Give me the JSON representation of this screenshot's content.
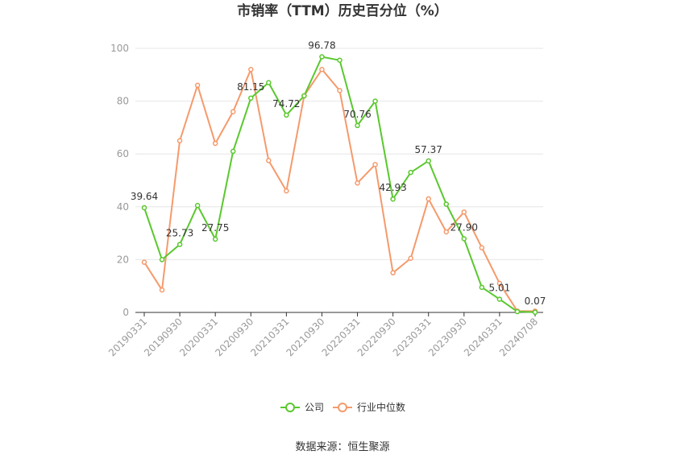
{
  "chart_data": {
    "type": "line",
    "title": "市销率（TTM）历史百分位（%）",
    "xlabel": "",
    "ylabel": "",
    "ylim": [
      0,
      100
    ],
    "yticks": [
      0,
      20,
      40,
      60,
      80,
      100
    ],
    "x": [
      "20190331",
      "20190630",
      "20190930",
      "20191231",
      "20200331",
      "20200630",
      "20200930",
      "20201231",
      "20210331",
      "20210630",
      "20210930",
      "20211231",
      "20220331",
      "20220630",
      "20220930",
      "20221231",
      "20230331",
      "20230630",
      "20230930",
      "20231231",
      "20240331",
      "20240630",
      "20240708"
    ],
    "xtick_labels": [
      "20190331",
      "20190930",
      "20200331",
      "20200930",
      "20210331",
      "20210930",
      "20220331",
      "20220930",
      "20230331",
      "20230930",
      "20240331",
      "20240708"
    ],
    "series": [
      {
        "name": "公司",
        "color": "#5ac82e",
        "values": [
          39.64,
          20.0,
          25.73,
          40.5,
          27.75,
          61.0,
          81.15,
          87.0,
          74.72,
          82.0,
          96.78,
          95.5,
          70.76,
          80.0,
          42.93,
          53.0,
          57.37,
          41.0,
          27.9,
          9.5,
          5.01,
          0.3,
          0.07
        ],
        "labels": [
          "39.64",
          "",
          "25.73",
          "",
          "27.75",
          "",
          "81.15",
          "",
          "74.72",
          "",
          "96.78",
          "",
          "70.76",
          "",
          "42.93",
          "",
          "57.37",
          "",
          "27.90",
          "",
          "5.01",
          "",
          "0.07"
        ]
      },
      {
        "name": "行业中位数",
        "color": "#f59a6c",
        "values": [
          19.0,
          8.5,
          65.0,
          86.0,
          64.0,
          76.0,
          92.0,
          57.5,
          46.0,
          82.0,
          92.0,
          84.0,
          49.0,
          56.0,
          15.0,
          20.5,
          43.0,
          30.5,
          38.0,
          24.5,
          11.0,
          0.5,
          0.5
        ]
      }
    ],
    "legend_position": "bottom",
    "grid": true
  },
  "source_text": "数据来源：恒生聚源"
}
